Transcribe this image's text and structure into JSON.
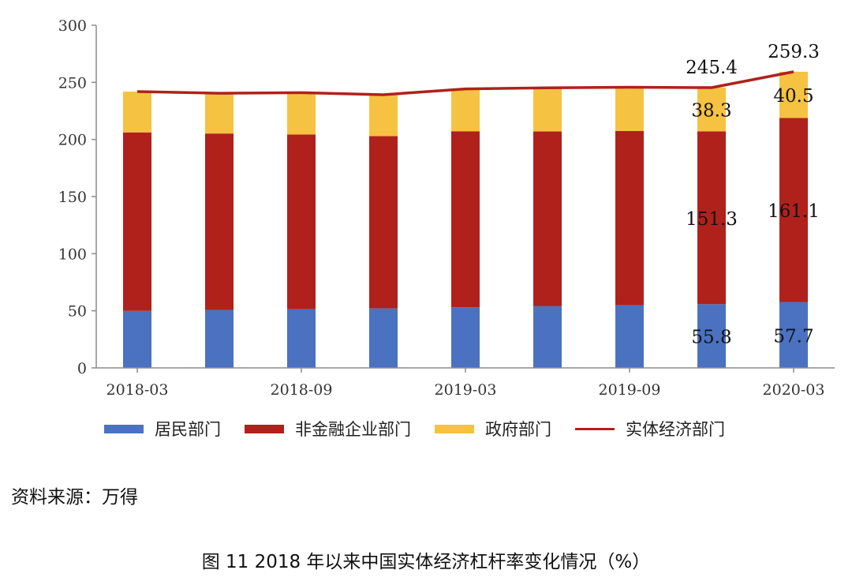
{
  "chart_data": {
    "type": "stacked-bar-with-line",
    "categories": [
      "2018-03",
      "2018-06",
      "2018-09",
      "2018-12",
      "2019-03",
      "2019-06",
      "2019-09",
      "2019-12",
      "2020-03"
    ],
    "x_tick_labels": [
      "2018-03",
      "2018-09",
      "2019-03",
      "2019-09",
      "2020-03"
    ],
    "ylim": [
      0,
      300
    ],
    "y_ticks": [
      0,
      50,
      100,
      150,
      200,
      250,
      300
    ],
    "series": [
      {
        "name": "居民部门",
        "kind": "bar",
        "color": "#4a72c0",
        "values": [
          49.9,
          50.7,
          51.4,
          52.1,
          53.1,
          54.0,
          55.0,
          55.8,
          57.7
        ]
      },
      {
        "name": "非金融企业部门",
        "kind": "bar",
        "color": "#b0211b",
        "values": [
          156.3,
          154.5,
          153.0,
          150.8,
          154.1,
          153.0,
          152.4,
          151.3,
          161.1
        ]
      },
      {
        "name": "政府部门",
        "kind": "bar",
        "color": "#f6c242",
        "values": [
          35.7,
          35.3,
          36.6,
          36.3,
          37.1,
          38.2,
          38.3,
          38.3,
          40.5
        ]
      },
      {
        "name": "实体经济部门",
        "kind": "line",
        "color": "#b0211b",
        "values": [
          241.9,
          240.5,
          241.0,
          239.2,
          244.3,
          245.2,
          245.7,
          245.4,
          259.3
        ]
      }
    ],
    "data_labels": [
      {
        "text": "245.4",
        "category": 7,
        "series": "实体经济部门"
      },
      {
        "text": "259.3",
        "category": 8,
        "series": "实体经济部门"
      },
      {
        "text": "38.3",
        "category": 7,
        "series": "政府部门"
      },
      {
        "text": "40.5",
        "category": 8,
        "series": "政府部门"
      },
      {
        "text": "151.3",
        "category": 7,
        "series": "非金融企业部门"
      },
      {
        "text": "161.1",
        "category": 8,
        "series": "非金融企业部门"
      },
      {
        "text": "55.8",
        "category": 7,
        "series": "居民部门"
      },
      {
        "text": "57.7",
        "category": 8,
        "series": "居民部门"
      }
    ],
    "legend_position": "bottom"
  },
  "legend": {
    "household": "居民部门",
    "nonfinancial": "非金融企业部门",
    "government": "政府部门",
    "real_economy": "实体经济部门"
  },
  "colors": {
    "household": "#4a72c0",
    "nonfinancial": "#b0211b",
    "government": "#f6c242",
    "line": "#b0211b"
  },
  "source": "资料来源：万得",
  "caption": "图 11 2018 年以来中国实体经济杠杆率变化情况（%）"
}
